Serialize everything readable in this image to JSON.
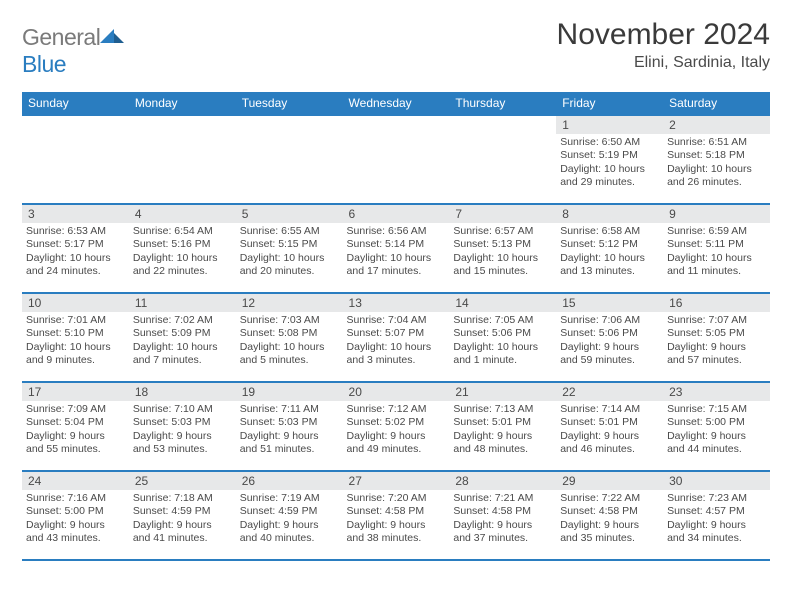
{
  "brand": {
    "part1": "General",
    "part2": "Blue"
  },
  "title": {
    "month": "November 2024",
    "location": "Elini, Sardinia, Italy"
  },
  "colors": {
    "accent": "#2a7dc0",
    "header_row_bg": "#e7e8e9",
    "text": "#4a4a4a",
    "bg": "#ffffff"
  },
  "weekdays": [
    "Sunday",
    "Monday",
    "Tuesday",
    "Wednesday",
    "Thursday",
    "Friday",
    "Saturday"
  ],
  "weeks": [
    [
      null,
      null,
      null,
      null,
      null,
      {
        "n": "1",
        "sr": "Sunrise: 6:50 AM",
        "ss": "Sunset: 5:19 PM",
        "d1": "Daylight: 10 hours",
        "d2": "and 29 minutes."
      },
      {
        "n": "2",
        "sr": "Sunrise: 6:51 AM",
        "ss": "Sunset: 5:18 PM",
        "d1": "Daylight: 10 hours",
        "d2": "and 26 minutes."
      }
    ],
    [
      {
        "n": "3",
        "sr": "Sunrise: 6:53 AM",
        "ss": "Sunset: 5:17 PM",
        "d1": "Daylight: 10 hours",
        "d2": "and 24 minutes."
      },
      {
        "n": "4",
        "sr": "Sunrise: 6:54 AM",
        "ss": "Sunset: 5:16 PM",
        "d1": "Daylight: 10 hours",
        "d2": "and 22 minutes."
      },
      {
        "n": "5",
        "sr": "Sunrise: 6:55 AM",
        "ss": "Sunset: 5:15 PM",
        "d1": "Daylight: 10 hours",
        "d2": "and 20 minutes."
      },
      {
        "n": "6",
        "sr": "Sunrise: 6:56 AM",
        "ss": "Sunset: 5:14 PM",
        "d1": "Daylight: 10 hours",
        "d2": "and 17 minutes."
      },
      {
        "n": "7",
        "sr": "Sunrise: 6:57 AM",
        "ss": "Sunset: 5:13 PM",
        "d1": "Daylight: 10 hours",
        "d2": "and 15 minutes."
      },
      {
        "n": "8",
        "sr": "Sunrise: 6:58 AM",
        "ss": "Sunset: 5:12 PM",
        "d1": "Daylight: 10 hours",
        "d2": "and 13 minutes."
      },
      {
        "n": "9",
        "sr": "Sunrise: 6:59 AM",
        "ss": "Sunset: 5:11 PM",
        "d1": "Daylight: 10 hours",
        "d2": "and 11 minutes."
      }
    ],
    [
      {
        "n": "10",
        "sr": "Sunrise: 7:01 AM",
        "ss": "Sunset: 5:10 PM",
        "d1": "Daylight: 10 hours",
        "d2": "and 9 minutes."
      },
      {
        "n": "11",
        "sr": "Sunrise: 7:02 AM",
        "ss": "Sunset: 5:09 PM",
        "d1": "Daylight: 10 hours",
        "d2": "and 7 minutes."
      },
      {
        "n": "12",
        "sr": "Sunrise: 7:03 AM",
        "ss": "Sunset: 5:08 PM",
        "d1": "Daylight: 10 hours",
        "d2": "and 5 minutes."
      },
      {
        "n": "13",
        "sr": "Sunrise: 7:04 AM",
        "ss": "Sunset: 5:07 PM",
        "d1": "Daylight: 10 hours",
        "d2": "and 3 minutes."
      },
      {
        "n": "14",
        "sr": "Sunrise: 7:05 AM",
        "ss": "Sunset: 5:06 PM",
        "d1": "Daylight: 10 hours",
        "d2": "and 1 minute."
      },
      {
        "n": "15",
        "sr": "Sunrise: 7:06 AM",
        "ss": "Sunset: 5:06 PM",
        "d1": "Daylight: 9 hours",
        "d2": "and 59 minutes."
      },
      {
        "n": "16",
        "sr": "Sunrise: 7:07 AM",
        "ss": "Sunset: 5:05 PM",
        "d1": "Daylight: 9 hours",
        "d2": "and 57 minutes."
      }
    ],
    [
      {
        "n": "17",
        "sr": "Sunrise: 7:09 AM",
        "ss": "Sunset: 5:04 PM",
        "d1": "Daylight: 9 hours",
        "d2": "and 55 minutes."
      },
      {
        "n": "18",
        "sr": "Sunrise: 7:10 AM",
        "ss": "Sunset: 5:03 PM",
        "d1": "Daylight: 9 hours",
        "d2": "and 53 minutes."
      },
      {
        "n": "19",
        "sr": "Sunrise: 7:11 AM",
        "ss": "Sunset: 5:03 PM",
        "d1": "Daylight: 9 hours",
        "d2": "and 51 minutes."
      },
      {
        "n": "20",
        "sr": "Sunrise: 7:12 AM",
        "ss": "Sunset: 5:02 PM",
        "d1": "Daylight: 9 hours",
        "d2": "and 49 minutes."
      },
      {
        "n": "21",
        "sr": "Sunrise: 7:13 AM",
        "ss": "Sunset: 5:01 PM",
        "d1": "Daylight: 9 hours",
        "d2": "and 48 minutes."
      },
      {
        "n": "22",
        "sr": "Sunrise: 7:14 AM",
        "ss": "Sunset: 5:01 PM",
        "d1": "Daylight: 9 hours",
        "d2": "and 46 minutes."
      },
      {
        "n": "23",
        "sr": "Sunrise: 7:15 AM",
        "ss": "Sunset: 5:00 PM",
        "d1": "Daylight: 9 hours",
        "d2": "and 44 minutes."
      }
    ],
    [
      {
        "n": "24",
        "sr": "Sunrise: 7:16 AM",
        "ss": "Sunset: 5:00 PM",
        "d1": "Daylight: 9 hours",
        "d2": "and 43 minutes."
      },
      {
        "n": "25",
        "sr": "Sunrise: 7:18 AM",
        "ss": "Sunset: 4:59 PM",
        "d1": "Daylight: 9 hours",
        "d2": "and 41 minutes."
      },
      {
        "n": "26",
        "sr": "Sunrise: 7:19 AM",
        "ss": "Sunset: 4:59 PM",
        "d1": "Daylight: 9 hours",
        "d2": "and 40 minutes."
      },
      {
        "n": "27",
        "sr": "Sunrise: 7:20 AM",
        "ss": "Sunset: 4:58 PM",
        "d1": "Daylight: 9 hours",
        "d2": "and 38 minutes."
      },
      {
        "n": "28",
        "sr": "Sunrise: 7:21 AM",
        "ss": "Sunset: 4:58 PM",
        "d1": "Daylight: 9 hours",
        "d2": "and 37 minutes."
      },
      {
        "n": "29",
        "sr": "Sunrise: 7:22 AM",
        "ss": "Sunset: 4:58 PM",
        "d1": "Daylight: 9 hours",
        "d2": "and 35 minutes."
      },
      {
        "n": "30",
        "sr": "Sunrise: 7:23 AM",
        "ss": "Sunset: 4:57 PM",
        "d1": "Daylight: 9 hours",
        "d2": "and 34 minutes."
      }
    ]
  ]
}
